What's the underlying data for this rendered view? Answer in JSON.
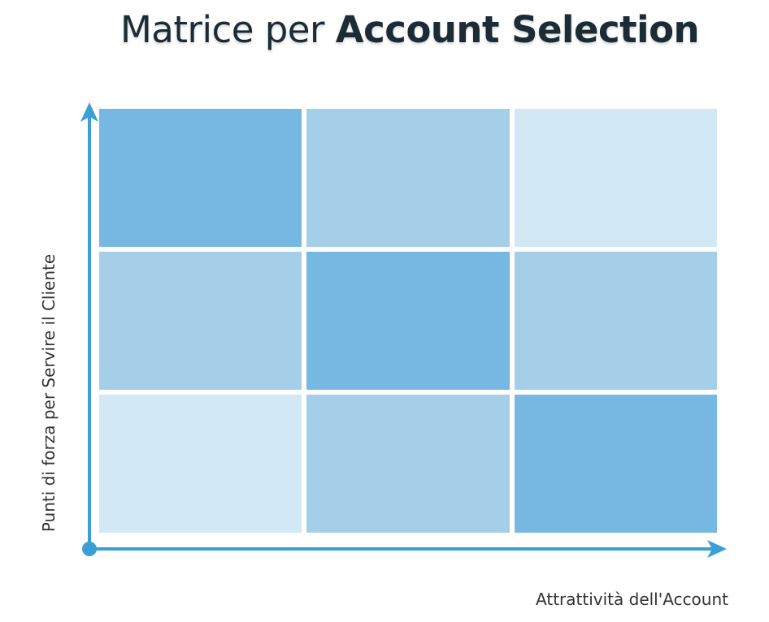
{
  "title": {
    "regular": "Matrice per ",
    "bold": "Account Selection"
  },
  "axes": {
    "y_label": "Punti di forza per Servire il Cliente",
    "x_label": "Attrattività dell'Account"
  },
  "colors": {
    "axis": "#3b9fd6",
    "strong": "#76b8e1",
    "medium": "#a5cfe9",
    "light": "#d3e8f5"
  },
  "matrix": {
    "rows": [
      [
        "strong",
        "medium",
        "light"
      ],
      [
        "medium",
        "strong",
        "medium"
      ],
      [
        "light",
        "medium",
        "strong"
      ]
    ]
  }
}
